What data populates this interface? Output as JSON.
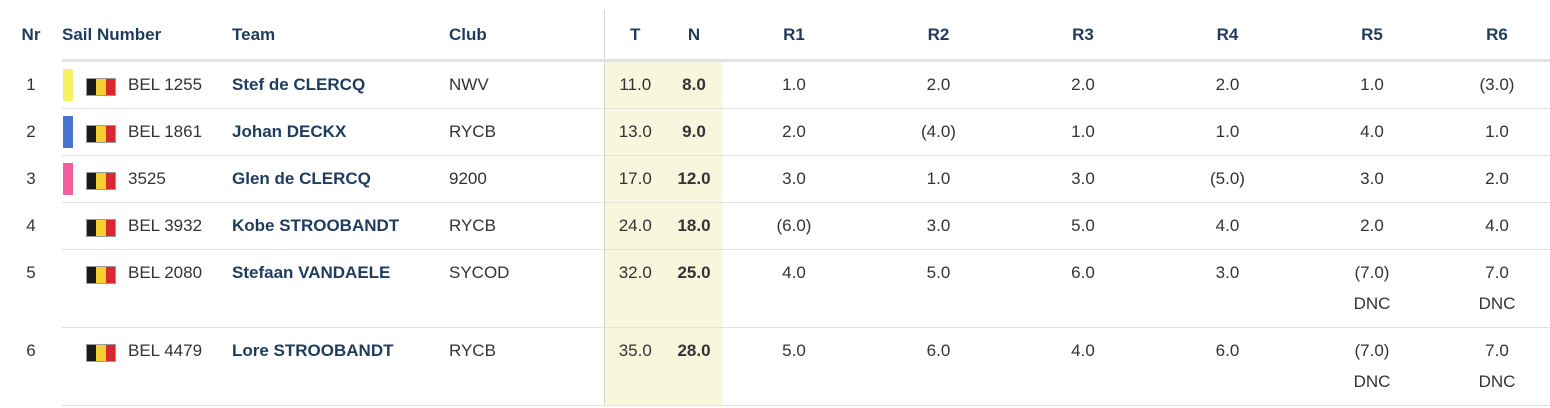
{
  "headers": {
    "nr": "Nr",
    "sail": "Sail Number",
    "team": "Team",
    "club": "Club",
    "t": "T",
    "n": "N",
    "r1": "R1",
    "r2": "R2",
    "r3": "R3",
    "r4": "R4",
    "r5": "R5",
    "r6": "R6"
  },
  "colors": {
    "flag_black": "#1a1a1a",
    "flag_yellow": "#f5d033",
    "flag_red": "#d8282e"
  },
  "rows": [
    {
      "nr": "1",
      "color": "#f5f064",
      "flag": "belgium-flag-icon",
      "sail": "BEL 1255",
      "team": "Stef de CLERCQ",
      "club": "NWV",
      "t": "11.0",
      "n": "8.0",
      "r1": "1.0",
      "r2": "2.0",
      "r3": "2.0",
      "r4": "2.0",
      "r5": "1.0",
      "r6": "(3.0)",
      "r5_sub": "",
      "r6_sub": ""
    },
    {
      "nr": "2",
      "color": "#4a72d0",
      "flag": "belgium-flag-icon",
      "sail": "BEL 1861",
      "team": "Johan DECKX",
      "club": "RYCB",
      "t": "13.0",
      "n": "9.0",
      "r1": "2.0",
      "r2": "(4.0)",
      "r3": "1.0",
      "r4": "1.0",
      "r5": "4.0",
      "r6": "1.0",
      "r5_sub": "",
      "r6_sub": ""
    },
    {
      "nr": "3",
      "color": "#ef5f9a",
      "flag": "belgium-flag-icon",
      "sail": "3525",
      "team": "Glen de CLERCQ",
      "club": "9200",
      "t": "17.0",
      "n": "12.0",
      "r1": "3.0",
      "r2": "1.0",
      "r3": "3.0",
      "r4": "(5.0)",
      "r5": "3.0",
      "r6": "2.0",
      "r5_sub": "",
      "r6_sub": ""
    },
    {
      "nr": "4",
      "color": "",
      "flag": "belgium-flag-icon",
      "sail": "BEL 3932",
      "team": "Kobe STROOBANDT",
      "club": "RYCB",
      "t": "24.0",
      "n": "18.0",
      "r1": "(6.0)",
      "r2": "3.0",
      "r3": "5.0",
      "r4": "4.0",
      "r5": "2.0",
      "r6": "4.0",
      "r5_sub": "",
      "r6_sub": ""
    },
    {
      "nr": "5",
      "color": "",
      "flag": "belgium-flag-icon",
      "sail": "BEL 2080",
      "team": "Stefaan VANDAELE",
      "club": "SYCOD",
      "t": "32.0",
      "n": "25.0",
      "r1": "4.0",
      "r2": "5.0",
      "r3": "6.0",
      "r4": "3.0",
      "r5": "(7.0)",
      "r6": "7.0",
      "r5_sub": "DNC",
      "r6_sub": "DNC"
    },
    {
      "nr": "6",
      "color": "",
      "flag": "belgium-flag-icon",
      "sail": "BEL 4479",
      "team": "Lore STROOBANDT",
      "club": "RYCB",
      "t": "35.0",
      "n": "28.0",
      "r1": "5.0",
      "r2": "6.0",
      "r3": "4.0",
      "r4": "6.0",
      "r5": "(7.0)",
      "r6": "7.0",
      "r5_sub": "DNC",
      "r6_sub": "DNC"
    }
  ]
}
